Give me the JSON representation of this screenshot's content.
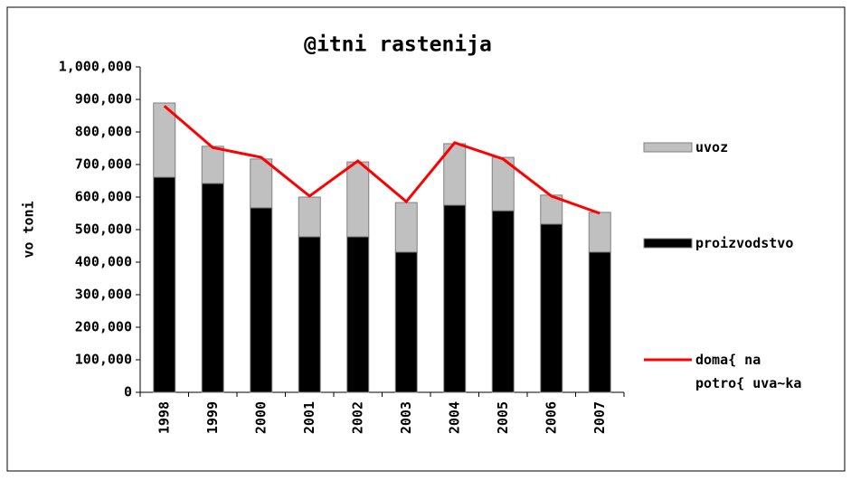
{
  "chart_data": {
    "type": "bar",
    "title": "@itni rastenija",
    "ylabel": "vo toni",
    "categories": [
      "1998",
      "1999",
      "2000",
      "2001",
      "2002",
      "2003",
      "2004",
      "2005",
      "2006",
      "2007"
    ],
    "series": [
      {
        "name": "uvoz",
        "color": "#c0c0c0",
        "stack": true,
        "values": [
          228000,
          114000,
          150000,
          122000,
          230000,
          152000,
          189000,
          164000,
          89000,
          122000
        ]
      },
      {
        "name": "proizvodstvo",
        "color": "#000000",
        "stack": true,
        "values": [
          661000,
          642000,
          567000,
          478000,
          478000,
          431000,
          575000,
          558000,
          517000,
          431000
        ]
      },
      {
        "name": "doma{ na potro{ uva~ka",
        "color": "#ff0000",
        "type": "line",
        "values": [
          880000,
          752000,
          722000,
          603000,
          711000,
          586000,
          767000,
          717000,
          603000,
          550000
        ]
      }
    ],
    "ylim": [
      0,
      1000000
    ],
    "yticks": [
      0,
      {
        "value": 100000,
        "label": "100,000"
      },
      {
        "value": 200000,
        "label": "200,000"
      },
      {
        "value": 300000,
        "label": "300,000"
      },
      {
        "value": 400000,
        "label": "400,000"
      },
      {
        "value": 500000,
        "label": "500,000"
      },
      {
        "value": 600000,
        "label": "600,000"
      },
      {
        "value": 700000,
        "label": "700,000"
      },
      {
        "value": 800000,
        "label": "800,000"
      },
      {
        "value": 900000,
        "label": "900,000"
      },
      {
        "value": 1000000,
        "label": "1,000,000"
      }
    ],
    "legend": "right",
    "grid": false
  }
}
